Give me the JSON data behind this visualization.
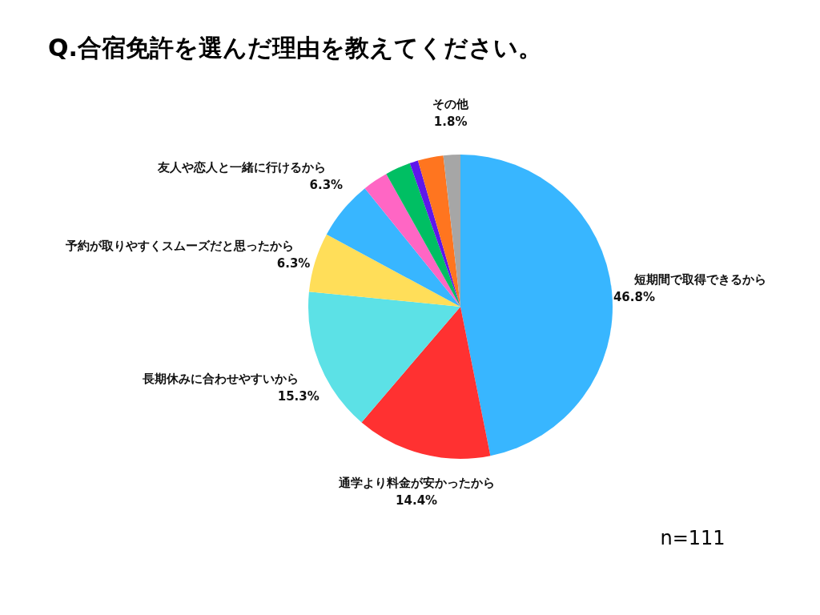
{
  "chart_data": {
    "type": "pie",
    "title": "Q.合宿免許を選んだ理由を教えてください。",
    "categories": [
      "短期間で取得できるから",
      "通学より料金が安かったから",
      "長期休みに合わせやすいから",
      "予約が取りやすくスムーズだと思ったから",
      "友人や恋人と一緒に行けるから",
      null,
      null,
      null,
      null,
      "その他"
    ],
    "values": [
      46.8,
      14.4,
      15.3,
      6.3,
      6.3,
      2.7,
      2.7,
      0.9,
      2.7,
      1.8
    ],
    "value_labels": [
      "46.8%",
      "14.4%",
      "15.3%",
      "6.3%",
      "6.3%",
      null,
      null,
      null,
      null,
      "1.8%"
    ],
    "colors": [
      "#38b6ff",
      "#ff3131",
      "#5ce1e6",
      "#ffde59",
      "#38b6ff",
      "#ff66c4",
      "#00bf63",
      "#5e17eb",
      "#ff751f",
      "#a6a6a6"
    ],
    "legend": false,
    "annotations": [
      "n=111"
    ]
  }
}
